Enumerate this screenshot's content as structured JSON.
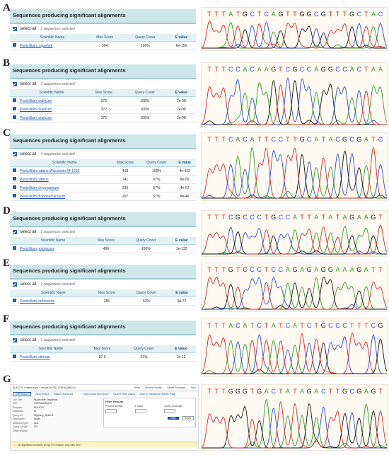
{
  "panels": [
    {
      "letter": "A",
      "title": "Sequences producing significant alignments",
      "select_all": "select all",
      "selected": "1 sequences selected",
      "headers": [
        "Scientific Name",
        "Max Score",
        "Query Cover",
        "E value"
      ],
      "rows": [
        [
          "Penicillium roqueforti",
          "564",
          "100%",
          "6e-156"
        ]
      ],
      "sequence": "TTTATGCTCAGTTGGCGTTTGCTAC"
    },
    {
      "letter": "B",
      "title": "Sequences producing significant alignments",
      "select_all": "select all",
      "selected": "3 sequences selected",
      "headers": [
        "Scientific Name",
        "Max Score",
        "Query Cover",
        "E value"
      ],
      "rows": [
        [
          "Penicillium oxalicum",
          "372",
          "100%",
          "2e-98"
        ],
        [
          "Penicillium oxalicum",
          "372",
          "100%",
          "2e-98"
        ],
        [
          "Penicillium oxalicum",
          "372",
          "100%",
          "2e-98"
        ]
      ],
      "sequence": "TTTCCACAAGTCGCCAGGCCACTAA"
    },
    {
      "letter": "C",
      "title": "Sequences producing significant alignments",
      "select_all": "select all",
      "selected": "4 sequences selected",
      "headers": [
        "Scientific Name",
        "Max Score",
        "Query Cover",
        "E value"
      ],
      "rows": [
        [
          "Penicillium rubens Wisconsin 54-1255",
          "418",
          "100%",
          "4e-112"
        ],
        [
          "Penicillium rubens",
          "241",
          "57%",
          "8e-59"
        ],
        [
          "Penicillium chrysogenum",
          "235",
          "57%",
          "4e-57"
        ],
        [
          "Penicillium mononematosum",
          "207",
          "57%",
          "8e-49"
        ]
      ],
      "sequence": "TTTCACATTCCTTGCATACGCGATC"
    },
    {
      "letter": "D",
      "title": "Sequences producing significant alignments",
      "select_all": "select all",
      "selected": "1 sequences selected",
      "headers": [
        "Scientific Name",
        "Max Score",
        "Query Cover",
        "E value"
      ],
      "rows": [
        [
          "Penicillium polonicum",
          "486",
          "100%",
          "1e-132"
        ]
      ],
      "sequence": "TTTCGCCCTGCCATTATATAGAAGT"
    },
    {
      "letter": "E",
      "title": "Sequences producing significant alignments",
      "select_all": "select all",
      "selected": "1 sequences selected",
      "headers": [
        "Scientific Name",
        "Max Score",
        "Query Cover",
        "E value"
      ],
      "rows": [
        [
          "Penicillium canescens",
          "285",
          "63%",
          "6e-72"
        ]
      ],
      "sequence": "TTTGTCCCTCCAGAGAGGAAAGATT"
    },
    {
      "letter": "F",
      "title": "Sequences producing significant alignments",
      "select_all": "select all",
      "selected": "1 sequences selected",
      "headers": [
        "Scientific Name",
        "Max Score",
        "Query Cover",
        "E value"
      ],
      "rows": [
        [
          "Penicillium citrinum",
          "87.9",
          "21%",
          "1e-12"
        ]
      ],
      "sequence": "TTTACATCTATCATCTGCCCTTTCG"
    }
  ],
  "panel_g": {
    "letter": "G",
    "breadcrumb": "BLAST ® » blastn suite » results for RID-7XEHAUMK016",
    "links": [
      "Home",
      "Recent Results",
      "Saved Strategies",
      "Help"
    ],
    "tabs": [
      "Edit Search",
      "Save Search",
      "Search Summary"
    ],
    "help_links": [
      "How to read this report?",
      "BLAST Help Videos",
      "Back to Traditional Results Page"
    ],
    "fields": [
      [
        "Job Title",
        "Nucleotide Sequence"
      ],
      [
        "RID",
        "7XEHAUMK016"
      ],
      [
        "Program",
        "BLASTN"
      ],
      [
        "Database",
        "nt"
      ],
      [
        "Query ID",
        "lcl|Query_516101"
      ],
      [
        "Description",
        "None"
      ],
      [
        "Molecule type",
        "dna"
      ],
      [
        "Query Length",
        "511"
      ],
      [
        "Other reports",
        ""
      ]
    ],
    "filter_title": "Filter Results",
    "filter_cols": [
      "Percent Identity",
      "E value",
      "Query Coverage"
    ],
    "filter_btn": "Filter",
    "reset_btn": "Reset",
    "warning": "No significant similarity found. For reasons why click here",
    "sequence": "TTTGGGTGACTATAGACTTGCGAGT"
  }
}
